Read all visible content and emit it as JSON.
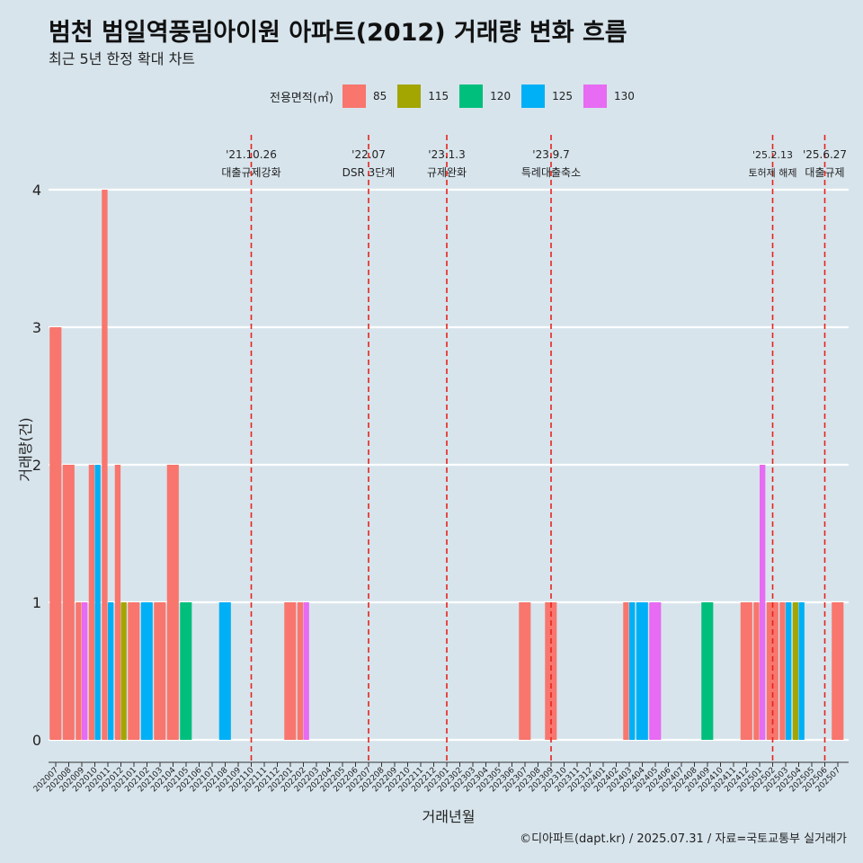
{
  "title": "범천 범일역풍림아이원 아파트(2012) 거래량 변화 흐름",
  "subtitle": "최근 5년 한정 확대 차트",
  "caption": "©디아파트(dapt.kr) / 2025.07.31 / 자료=국토교통부 실거래가",
  "legend": {
    "title": "전용면적(㎡)",
    "items": [
      {
        "label": "85",
        "color": "#f8766d"
      },
      {
        "label": "115",
        "color": "#a3a500"
      },
      {
        "label": "120",
        "color": "#00bf7d"
      },
      {
        "label": "125",
        "color": "#00b0f6"
      },
      {
        "label": "130",
        "color": "#e76bf3"
      }
    ]
  },
  "chart_data": {
    "type": "bar",
    "xlabel": "거래년월",
    "ylabel": "거래량(건)",
    "ylim": [
      0,
      4
    ],
    "yticks": [
      0,
      1,
      2,
      3,
      4
    ],
    "grid": true,
    "legend_position": "top",
    "categories": [
      "202007",
      "202008",
      "202009",
      "202010",
      "202011",
      "202012",
      "202101",
      "202102",
      "202103",
      "202104",
      "202105",
      "202106",
      "202107",
      "202108",
      "202109",
      "202110",
      "202111",
      "202112",
      "202201",
      "202202",
      "202203",
      "202204",
      "202205",
      "202206",
      "202207",
      "202208",
      "202209",
      "202210",
      "202211",
      "202212",
      "202301",
      "202302",
      "202303",
      "202304",
      "202305",
      "202306",
      "202307",
      "202308",
      "202309",
      "202310",
      "202311",
      "202312",
      "202401",
      "202402",
      "202403",
      "202404",
      "202405",
      "202406",
      "202407",
      "202408",
      "202409",
      "202410",
      "202411",
      "202412",
      "202501",
      "202502",
      "202503",
      "202504",
      "202505",
      "202506",
      "202507"
    ],
    "series_keys": [
      "85",
      "115",
      "120",
      "125",
      "130"
    ],
    "bars": [
      {
        "x": "202007",
        "values": {
          "85": 3
        }
      },
      {
        "x": "202008",
        "values": {
          "85": 2
        }
      },
      {
        "x": "202009",
        "values": {
          "85": 1,
          "130": 1
        }
      },
      {
        "x": "202010",
        "values": {
          "85": 2,
          "125": 2
        }
      },
      {
        "x": "202011",
        "values": {
          "85": 4,
          "125": 1
        }
      },
      {
        "x": "202012",
        "values": {
          "85": 2,
          "115": 1
        }
      },
      {
        "x": "202101",
        "values": {
          "85": 1
        }
      },
      {
        "x": "202102",
        "values": {
          "125": 1
        }
      },
      {
        "x": "202103",
        "values": {
          "85": 1
        }
      },
      {
        "x": "202104",
        "values": {
          "85": 2
        }
      },
      {
        "x": "202105",
        "values": {
          "120": 1
        }
      },
      {
        "x": "202108",
        "values": {
          "125": 1
        }
      },
      {
        "x": "202201",
        "values": {
          "85": 1
        }
      },
      {
        "x": "202202",
        "values": {
          "85": 1,
          "130": 1
        }
      },
      {
        "x": "202307",
        "values": {
          "85": 1
        }
      },
      {
        "x": "202309",
        "values": {
          "85": 1
        }
      },
      {
        "x": "202403",
        "values": {
          "85": 1,
          "125": 1
        }
      },
      {
        "x": "202404",
        "values": {
          "125": 1
        }
      },
      {
        "x": "202405",
        "values": {
          "130": 1
        }
      },
      {
        "x": "202409",
        "values": {
          "120": 1
        }
      },
      {
        "x": "202412",
        "values": {
          "85": 1
        }
      },
      {
        "x": "202501",
        "values": {
          "85": 1,
          "130": 2
        }
      },
      {
        "x": "202502",
        "values": {
          "85": 1
        }
      },
      {
        "x": "202503",
        "values": {
          "85": 1,
          "125": 1
        }
      },
      {
        "x": "202504",
        "values": {
          "115": 1,
          "125": 1
        }
      },
      {
        "x": "202507",
        "values": {
          "85": 1
        }
      }
    ],
    "annotations": [
      {
        "x": "202110",
        "date": "'21.10.26",
        "text": "대출규제강화"
      },
      {
        "x": "202207",
        "date": "'22.07",
        "text": "DSR 3단계"
      },
      {
        "x": "202301",
        "date": "'23.1.3",
        "text": "규제완화"
      },
      {
        "x": "202309",
        "date": "'23.9.7",
        "text": "특례대출축소"
      },
      {
        "x": "202502",
        "date": "'25.2.13",
        "text": "토허제 해제"
      },
      {
        "x": "202506",
        "date": "'25.6.27",
        "text": "대출규제"
      }
    ]
  }
}
